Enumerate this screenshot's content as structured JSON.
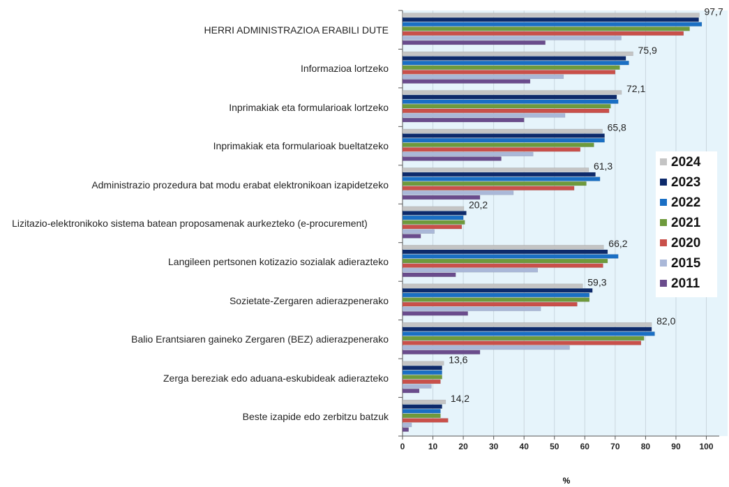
{
  "chart_data": {
    "type": "hbar",
    "x_label": "%",
    "categories": [
      "HERRI ADMINISTRAZIOA ERABILI DUTE",
      "Informazioa lortzeko",
      "Inprimakiak eta formularioak lortzeko",
      "Inprimakiak eta formularioak bueltatzeko",
      "Administrazio prozedura bat modu erabat elektronikoan izapidetzeko",
      "Lizitazio-elektronikoko sistema batean proposamenak aurkezteko (e-procurement)",
      "Langileen pertsonen kotizazio sozialak adierazteko",
      "Sozietate-Zergaren adierazpenerako",
      "Balio Erantsiaren gaineko Zergaren (BEZ) adierazpenerako",
      "Zerga bereziak edo aduana-eskubideak adierazteko",
      "Beste izapide edo zerbitzu batzuk"
    ],
    "series": [
      {
        "name": "2024",
        "color": "#c4c4c4",
        "values": [
          97.7,
          75.9,
          72.1,
          65.8,
          61.3,
          20.2,
          66.2,
          59.3,
          82.0,
          13.6,
          14.2
        ],
        "value_labels": [
          "97,7",
          "75,9",
          "72,1",
          "65,8",
          "61,3",
          "20,2",
          "66,2",
          "59,3",
          "82,0",
          "13,6",
          "14,2"
        ]
      },
      {
        "name": "2023",
        "color": "#0d2a6b",
        "values": [
          97.5,
          73.5,
          70.5,
          66.5,
          63.5,
          21,
          67.5,
          62.5,
          82,
          13,
          13
        ]
      },
      {
        "name": "2022",
        "color": "#1a6fc4",
        "values": [
          98.5,
          74.5,
          71,
          66.5,
          65,
          20,
          71,
          61.5,
          83,
          13,
          12.5
        ]
      },
      {
        "name": "2021",
        "color": "#6e9a3c",
        "values": [
          94.5,
          71.5,
          68.5,
          63,
          60.5,
          20.5,
          67.5,
          61.5,
          79.5,
          13,
          12.5
        ]
      },
      {
        "name": "2020",
        "color": "#c9504a",
        "values": [
          92.5,
          70,
          68,
          58.5,
          56.5,
          19.5,
          66,
          57.5,
          78.5,
          12.5,
          15
        ]
      },
      {
        "name": "2015",
        "color": "#aab8d8",
        "values": [
          72,
          53,
          53.5,
          43,
          36.5,
          10.5,
          44.5,
          45.5,
          55,
          9.5,
          3
        ]
      },
      {
        "name": "2011",
        "color": "#6a4c8c",
        "values": [
          47,
          42,
          40,
          32.5,
          25.5,
          6,
          17.5,
          21.5,
          25.5,
          5.5,
          2
        ]
      }
    ],
    "xlim": [
      0,
      107
    ],
    "xticks": [
      0,
      10,
      20,
      30,
      40,
      50,
      60,
      70,
      80,
      90,
      100
    ],
    "grid": true,
    "legend": "right"
  }
}
